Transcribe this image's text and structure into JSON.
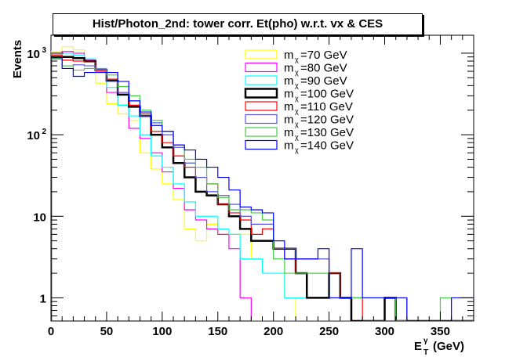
{
  "chart_data": {
    "type": "line",
    "title": "Hist/Photon_2nd: tower corr. Et(pho) w.r.t. vx & CES",
    "xlabel": "E_T^γ (GeV)",
    "xlabel_main": "E",
    "xlabel_sub": "T",
    "xlabel_sup": "γ",
    "xlabel_unit": "(GeV)",
    "ylabel": "Events",
    "xlim": [
      0,
      380
    ],
    "ylim": [
      0.52,
      1660
    ],
    "yscale": "log",
    "bin_width": 10,
    "x_ticks": [
      "0",
      "50",
      "100",
      "150",
      "200",
      "250",
      "300",
      "350"
    ],
    "y_ticks": [
      {
        "v": 1,
        "label": "1"
      },
      {
        "v": 10,
        "label": "10"
      },
      {
        "v": 100,
        "base": "10",
        "exp": "2"
      },
      {
        "v": 1000,
        "base": "10",
        "exp": "3"
      }
    ],
    "legend_position": "top-center",
    "legend_prefix": "m",
    "legend_sub": "χ",
    "series": [
      {
        "name": "=70 GeV",
        "color": "#ffff00",
        "values": [
          1050,
          1200,
          1100,
          800,
          430,
          240,
          180,
          150,
          60,
          38,
          25,
          16,
          7,
          5,
          8,
          6,
          6,
          6,
          3,
          2,
          2,
          1,
          0,
          0,
          0,
          0,
          0,
          0,
          0,
          0,
          0,
          0,
          0,
          0,
          0,
          0,
          0,
          0
        ]
      },
      {
        "name": "=80 GeV",
        "color": "#ff00ff",
        "values": [
          1000,
          1050,
          1000,
          820,
          600,
          330,
          230,
          120,
          90,
          60,
          35,
          22,
          12,
          9,
          7,
          6,
          4,
          1,
          0,
          0,
          0,
          0,
          0,
          0,
          0,
          0,
          0,
          0,
          0,
          0,
          0,
          0,
          0,
          0,
          0,
          0,
          0,
          0
        ]
      },
      {
        "name": "=90 GeV",
        "color": "#00ffff",
        "values": [
          950,
          1000,
          950,
          850,
          650,
          380,
          230,
          170,
          100,
          55,
          40,
          25,
          15,
          10,
          10,
          7,
          6,
          3,
          3,
          2,
          2,
          1,
          1,
          1,
          1,
          1,
          1,
          1,
          1,
          1,
          1,
          0,
          0,
          0,
          0,
          0,
          0,
          0
        ]
      },
      {
        "name": "=100 GeV",
        "color": "#000000",
        "values": [
          900,
          900,
          870,
          800,
          620,
          460,
          310,
          220,
          170,
          100,
          70,
          45,
          30,
          20,
          18,
          14,
          10,
          7,
          5,
          5,
          4,
          4,
          2,
          1,
          1,
          2,
          1,
          0,
          0,
          0,
          1,
          0,
          0,
          0,
          0,
          0,
          0,
          0
        ]
      },
      {
        "name": "=110 GeV",
        "color": "#ff0000",
        "values": [
          950,
          820,
          800,
          780,
          610,
          480,
          330,
          230,
          180,
          110,
          80,
          55,
          40,
          30,
          25,
          14,
          11,
          9,
          6,
          7,
          4,
          3,
          2,
          2,
          2,
          2,
          1,
          1,
          0,
          0,
          0,
          0,
          0,
          0,
          0,
          0,
          0,
          0
        ]
      },
      {
        "name": "=120 GeV",
        "color": "#5555dd",
        "values": [
          850,
          700,
          720,
          700,
          640,
          450,
          330,
          260,
          170,
          140,
          100,
          70,
          45,
          30,
          20,
          18,
          14,
          10,
          8,
          8,
          4,
          4,
          3,
          3,
          3,
          1,
          1,
          1,
          1,
          1,
          1,
          1,
          0,
          0,
          0,
          0,
          0,
          0
        ]
      },
      {
        "name": "=130 GeV",
        "color": "#44cc44",
        "values": [
          860,
          700,
          620,
          650,
          620,
          540,
          390,
          300,
          200,
          150,
          110,
          75,
          50,
          40,
          25,
          17,
          12,
          12,
          11,
          9,
          3,
          2,
          2,
          2,
          2,
          1,
          1,
          1,
          1,
          1,
          1,
          0,
          0,
          0,
          0,
          1,
          1,
          1
        ]
      },
      {
        "name": "=140 GeV",
        "color": "#0000ff",
        "values": [
          880,
          650,
          520,
          580,
          580,
          580,
          450,
          260,
          190,
          130,
          110,
          75,
          65,
          50,
          40,
          30,
          21,
          13,
          12,
          11,
          5,
          3,
          3,
          3,
          4,
          1,
          1,
          4,
          1,
          1,
          1,
          1,
          0,
          0,
          0,
          0,
          1,
          1
        ]
      }
    ]
  }
}
